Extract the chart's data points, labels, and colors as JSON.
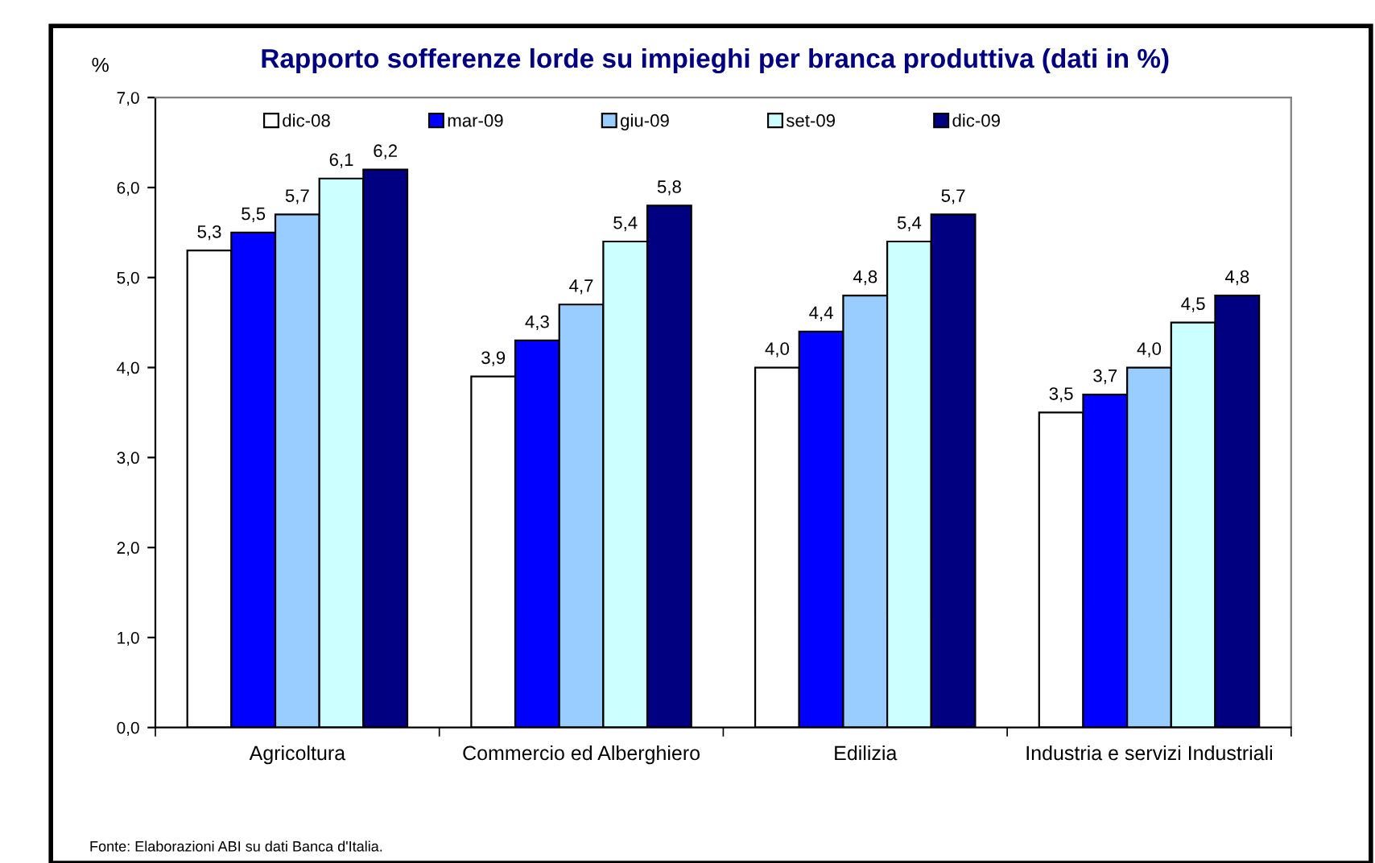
{
  "chart_data": {
    "type": "bar",
    "title": "Rapporto sofferenze lorde su impieghi per branca produttiva (dati in %)",
    "ylabel": "%",
    "categories": [
      "Agricoltura",
      "Commercio ed Alberghiero",
      "Edilizia",
      "Industria e servizi Industriali"
    ],
    "series": [
      {
        "name": "dic-08",
        "color": "#ffffff",
        "values": [
          5.3,
          3.9,
          4.0,
          3.5
        ],
        "value_labels": [
          "5,3",
          "3,9",
          "4,0",
          "3,5"
        ]
      },
      {
        "name": "mar-09",
        "color": "#0000ff",
        "values": [
          5.5,
          4.3,
          4.4,
          3.7
        ],
        "value_labels": [
          "5,5",
          "4,3",
          "4,4",
          "3,7"
        ]
      },
      {
        "name": "giu-09",
        "color": "#99ccff",
        "values": [
          5.7,
          4.7,
          4.8,
          4.0
        ],
        "value_labels": [
          "5,7",
          "4,7",
          "4,8",
          "4,0"
        ]
      },
      {
        "name": "set-09",
        "color": "#ccffff",
        "values": [
          6.1,
          5.4,
          5.4,
          4.5
        ],
        "value_labels": [
          "6,1",
          "5,4",
          "5,4",
          "4,5"
        ]
      },
      {
        "name": "dic-09",
        "color": "#000080",
        "values": [
          6.2,
          5.8,
          5.7,
          4.8
        ],
        "value_labels": [
          "6,2",
          "5,8",
          "5,7",
          "4,8"
        ]
      }
    ],
    "ylim": [
      0,
      7
    ],
    "yticks": [
      {
        "value": 0,
        "label": "0,0"
      },
      {
        "value": 1,
        "label": "1,0"
      },
      {
        "value": 2,
        "label": "2,0"
      },
      {
        "value": 3,
        "label": "3,0"
      },
      {
        "value": 4,
        "label": "4,0"
      },
      {
        "value": 5,
        "label": "5,0"
      },
      {
        "value": 6,
        "label": "6,0"
      },
      {
        "value": 7,
        "label": "7,0"
      }
    ],
    "grid": false,
    "legend": "top",
    "annotations": [
      "Fonte: Elaborazioni ABI su dati Banca d'Italia."
    ]
  }
}
